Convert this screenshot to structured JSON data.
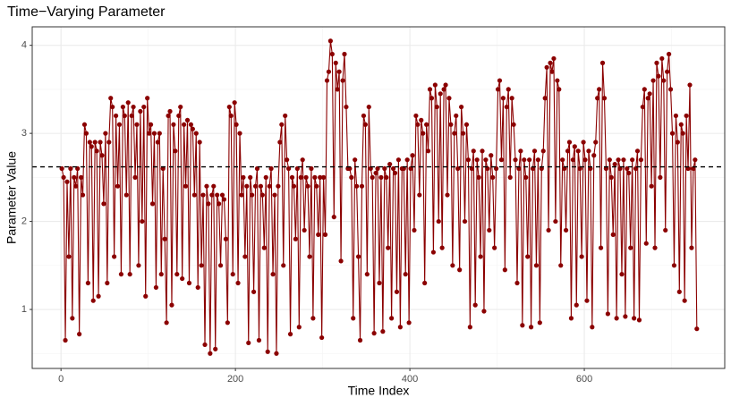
{
  "chart_data": {
    "type": "line",
    "title": "Time−Varying Parameter",
    "xlabel": "Time Index",
    "ylabel": "Parameter Value",
    "x": [
      1,
      3,
      5,
      7,
      9,
      11,
      13,
      15,
      17,
      19,
      21,
      23,
      25,
      27,
      29,
      31,
      33,
      35,
      37,
      39,
      41,
      43,
      45,
      47,
      49,
      51,
      53,
      55,
      57,
      59,
      61,
      63,
      65,
      67,
      69,
      71,
      73,
      75,
      77,
      79,
      81,
      83,
      85,
      87,
      89,
      91,
      93,
      95,
      97,
      99,
      101,
      103,
      105,
      107,
      109,
      111,
      113,
      115,
      117,
      119,
      121,
      123,
      125,
      127,
      129,
      131,
      133,
      135,
      137,
      139,
      141,
      143,
      145,
      147,
      149,
      151,
      153,
      155,
      157,
      159,
      161,
      163,
      165,
      167,
      169,
      171,
      173,
      175,
      177,
      179,
      181,
      183,
      185,
      187,
      189,
      191,
      193,
      195,
      197,
      199,
      201,
      203,
      205,
      207,
      209,
      211,
      213,
      215,
      217,
      219,
      221,
      223,
      225,
      227,
      229,
      231,
      233,
      235,
      237,
      239,
      241,
      243,
      245,
      247,
      249,
      251,
      253,
      255,
      257,
      259,
      261,
      263,
      265,
      267,
      269,
      271,
      273,
      275,
      277,
      279,
      281,
      283,
      285,
      287,
      289,
      291,
      293,
      295,
      297,
      299,
      301,
      303,
      305,
      307,
      309,
      311,
      313,
      315,
      317,
      319,
      321,
      323,
      325,
      327,
      329,
      331,
      333,
      335,
      337,
      339,
      341,
      343,
      345,
      347,
      349,
      351,
      353,
      355,
      357,
      359,
      361,
      363,
      365,
      367,
      369,
      371,
      373,
      375,
      377,
      379,
      381,
      383,
      385,
      387,
      389,
      391,
      393,
      395,
      397,
      399,
      401,
      403,
      405,
      407,
      409,
      411,
      413,
      415,
      417,
      419,
      421,
      423,
      425,
      427,
      429,
      431,
      433,
      435,
      437,
      439,
      441,
      443,
      445,
      447,
      449,
      451,
      453,
      455,
      457,
      459,
      461,
      463,
      465,
      467,
      469,
      471,
      473,
      475,
      477,
      479,
      481,
      483,
      485,
      487,
      489,
      491,
      493,
      495,
      497,
      499,
      501,
      503,
      505,
      507,
      509,
      511,
      513,
      515,
      517,
      519,
      521,
      523,
      525,
      527,
      529,
      531,
      533,
      535,
      537,
      539,
      541,
      543,
      545,
      547,
      549,
      551,
      553,
      555,
      557,
      559,
      561,
      563,
      565,
      567,
      569,
      571,
      573,
      575,
      577,
      579,
      581,
      583,
      585,
      587,
      589,
      591,
      593,
      595,
      597,
      599,
      601,
      603,
      605,
      607,
      609,
      611,
      613,
      615,
      617,
      619,
      621,
      623,
      625,
      627,
      629,
      631,
      633,
      635,
      637,
      639,
      641,
      643,
      645,
      647,
      649,
      651,
      653,
      655,
      657,
      659,
      661,
      663,
      665,
      667,
      669,
      671,
      673,
      675,
      677,
      679,
      681,
      683,
      685,
      687,
      689,
      691,
      693,
      695,
      697,
      699,
      701,
      703,
      705,
      707,
      709,
      711,
      713,
      715,
      717,
      719,
      721,
      723,
      725,
      727,
      729
    ],
    "values": [
      2.6,
      2.5,
      0.65,
      2.45,
      1.6,
      2.6,
      0.9,
      2.5,
      2.4,
      2.6,
      0.72,
      2.5,
      2.3,
      3.1,
      3.0,
      1.3,
      2.9,
      2.85,
      1.1,
      2.9,
      2.8,
      1.15,
      2.9,
      2.75,
      2.2,
      3.0,
      1.3,
      2.9,
      3.4,
      3.3,
      1.6,
      3.2,
      2.4,
      3.1,
      1.4,
      3.3,
      3.2,
      2.3,
      3.35,
      1.4,
      3.2,
      3.3,
      2.5,
      3.1,
      1.5,
      3.25,
      2.0,
      3.3,
      1.15,
      3.4,
      3.0,
      3.1,
      2.2,
      3.0,
      1.25,
      2.9,
      3.0,
      1.4,
      2.6,
      1.8,
      0.85,
      3.2,
      3.25,
      1.05,
      3.1,
      2.8,
      1.4,
      3.2,
      3.3,
      1.35,
      3.1,
      2.4,
      3.15,
      1.3,
      3.1,
      3.05,
      2.3,
      3.0,
      1.25,
      2.9,
      1.5,
      2.3,
      0.6,
      2.4,
      2.2,
      0.5,
      2.3,
      2.4,
      0.55,
      2.3,
      2.2,
      1.5,
      2.3,
      2.25,
      1.8,
      0.85,
      3.3,
      3.2,
      1.4,
      3.35,
      3.1,
      1.3,
      3.0,
      2.3,
      2.5,
      1.6,
      2.4,
      0.62,
      2.5,
      2.3,
      1.2,
      2.4,
      2.6,
      0.65,
      2.4,
      2.3,
      1.7,
      2.5,
      0.52,
      2.4,
      2.6,
      1.4,
      2.3,
      0.5,
      2.4,
      2.9,
      3.1,
      1.5,
      3.2,
      2.7,
      2.6,
      0.72,
      2.5,
      2.4,
      1.8,
      2.6,
      0.8,
      2.5,
      2.7,
      1.9,
      2.5,
      2.4,
      1.6,
      2.6,
      0.9,
      2.5,
      2.4,
      1.85,
      2.5,
      0.68,
      2.5,
      1.85,
      3.6,
      3.7,
      4.05,
      3.9,
      2.05,
      3.8,
      3.5,
      3.7,
      1.55,
      3.6,
      3.9,
      3.3,
      2.6,
      2.6,
      2.5,
      0.9,
      2.7,
      2.4,
      1.6,
      0.65,
      2.4,
      3.2,
      3.1,
      1.4,
      3.3,
      2.6,
      2.5,
      0.73,
      2.55,
      2.6,
      1.3,
      2.5,
      0.75,
      2.6,
      2.5,
      1.7,
      2.65,
      0.9,
      2.6,
      2.55,
      1.2,
      2.7,
      0.8,
      2.6,
      2.6,
      1.4,
      2.7,
      0.85,
      2.6,
      2.75,
      1.9,
      3.2,
      3.1,
      2.3,
      3.15,
      3.0,
      1.3,
      3.1,
      2.8,
      3.5,
      3.4,
      1.65,
      3.55,
      3.3,
      2.0,
      3.45,
      1.7,
      3.5,
      3.55,
      2.3,
      3.4,
      3.1,
      1.5,
      3.0,
      3.2,
      2.6,
      1.45,
      3.3,
      3.0,
      2.0,
      3.1,
      2.7,
      0.8,
      2.6,
      2.8,
      1.05,
      2.7,
      2.5,
      1.6,
      2.8,
      0.98,
      2.7,
      2.6,
      1.9,
      2.75,
      2.5,
      1.7,
      2.6,
      3.5,
      3.6,
      2.7,
      3.4,
      1.45,
      3.3,
      3.5,
      2.5,
      3.4,
      3.1,
      2.7,
      1.3,
      2.6,
      2.8,
      0.82,
      2.7,
      2.5,
      1.6,
      2.7,
      0.8,
      2.6,
      2.8,
      1.5,
      2.7,
      0.85,
      2.6,
      2.8,
      3.4,
      3.75,
      1.9,
      3.8,
      3.7,
      3.85,
      2.0,
      3.6,
      3.5,
      1.5,
      2.7,
      2.6,
      1.9,
      2.8,
      2.9,
      0.9,
      2.7,
      2.85,
      1.05,
      2.8,
      2.6,
      1.6,
      2.9,
      2.7,
      1.1,
      2.8,
      2.6,
      0.8,
      2.75,
      2.9,
      3.4,
      3.5,
      1.7,
      3.8,
      3.4,
      2.6,
      0.95,
      2.7,
      2.5,
      1.85,
      2.65,
      0.9,
      2.7,
      2.6,
      1.4,
      2.7,
      0.92,
      2.6,
      2.55,
      1.7,
      2.7,
      0.9,
      2.6,
      2.8,
      0.88,
      2.7,
      3.3,
      3.5,
      1.75,
      3.4,
      3.45,
      2.4,
      3.6,
      1.7,
      3.8,
      3.65,
      2.5,
      3.85,
      3.6,
      1.9,
      3.7,
      3.9,
      3.5,
      3.0,
      1.5,
      3.2,
      2.9,
      1.2,
      3.1,
      3.0,
      1.1,
      3.2,
      2.6,
      3.55,
      1.7,
      2.6,
      2.7,
      0.78
    ],
    "color": "#8b0000",
    "hline": 2.62,
    "xlim": [
      -33,
      761
    ],
    "xticks": [
      0,
      200,
      400,
      600
    ],
    "xminor": [
      100,
      300,
      500,
      700
    ],
    "ylim": [
      0.33,
      4.21
    ],
    "yticks": [
      1,
      2,
      3,
      4
    ],
    "yminor": [
      0.5,
      1.5,
      2.5,
      3.5
    ],
    "grid": true
  }
}
